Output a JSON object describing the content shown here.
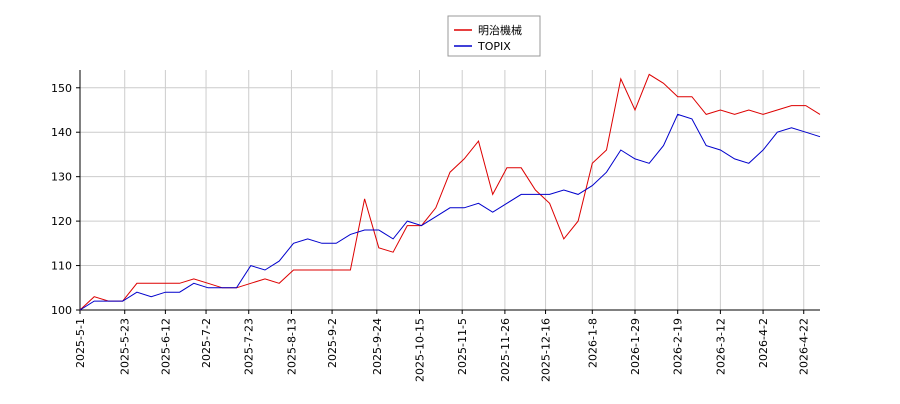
{
  "chart_data": {
    "type": "line",
    "x": [
      "2025-5-1",
      "2025-5-8",
      "2025-5-15",
      "2025-5-22",
      "2025-5-29",
      "2025-6-5",
      "2025-6-12",
      "2025-6-19",
      "2025-6-26",
      "2025-7-3",
      "2025-7-10",
      "2025-7-17",
      "2025-7-24",
      "2025-7-31",
      "2025-8-7",
      "2025-8-14",
      "2025-8-21",
      "2025-8-28",
      "2025-9-4",
      "2025-9-11",
      "2025-9-18",
      "2025-9-25",
      "2025-10-2",
      "2025-10-9",
      "2025-10-16",
      "2025-10-23",
      "2025-10-30",
      "2025-11-6",
      "2025-11-13",
      "2025-11-20",
      "2025-11-27",
      "2025-12-4",
      "2025-12-11",
      "2025-12-18",
      "2025-12-25",
      "2026-1-1",
      "2026-1-8",
      "2026-1-15",
      "2026-1-22",
      "2026-1-29",
      "2026-2-5",
      "2026-2-12",
      "2026-2-19",
      "2026-2-26",
      "2026-3-5",
      "2026-3-12",
      "2026-3-19",
      "2026-3-26",
      "2026-4-2",
      "2026-4-9",
      "2026-4-16",
      "2026-4-23",
      "2026-4-30"
    ],
    "series": [
      {
        "name": "明治機械",
        "color": "#dd0000",
        "values": [
          100,
          103,
          102,
          102,
          106,
          106,
          106,
          106,
          107,
          106,
          105,
          105,
          106,
          107,
          106,
          109,
          109,
          109,
          109,
          109,
          125,
          114,
          113,
          119,
          119,
          123,
          131,
          134,
          138,
          126,
          132,
          132,
          127,
          124,
          116,
          120,
          133,
          136,
          152,
          145,
          153,
          151,
          148,
          148,
          144,
          145,
          144,
          145,
          144,
          145,
          146,
          146,
          144
        ]
      },
      {
        "name": "TOPIX",
        "color": "#0000cc",
        "values": [
          100,
          102,
          102,
          102,
          104,
          103,
          104,
          104,
          106,
          105,
          105,
          105,
          110,
          109,
          111,
          115,
          116,
          115,
          115,
          117,
          118,
          118,
          116,
          120,
          119,
          121,
          123,
          123,
          124,
          122,
          124,
          126,
          126,
          126,
          127,
          126,
          128,
          131,
          136,
          134,
          133,
          137,
          144,
          143,
          137,
          136,
          134,
          133,
          136,
          140,
          141,
          140,
          139
        ]
      }
    ],
    "xlim": [
      "2025-5-1",
      "2026-4-30"
    ],
    "xticks": [
      "2025-5-1",
      "2025-5-23",
      "2025-6-12",
      "2025-7-2",
      "2025-7-23",
      "2025-8-13",
      "2025-9-2",
      "2025-9-24",
      "2025-10-15",
      "2025-11-5",
      "2025-11-26",
      "2025-12-16",
      "2026-1-8",
      "2026-1-29",
      "2026-2-19",
      "2026-3-12",
      "2026-4-2",
      "2026-4-22"
    ],
    "ylim": [
      100,
      154
    ],
    "yticks": [
      100,
      110,
      120,
      130,
      140,
      150
    ],
    "grid": true,
    "legend": "upper center"
  }
}
